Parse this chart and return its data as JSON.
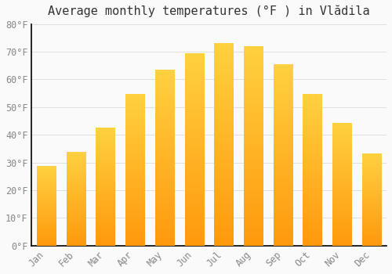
{
  "title": "Average monthly temperatures (°F ) in Vlădila",
  "months": [
    "Jan",
    "Feb",
    "Mar",
    "Apr",
    "May",
    "Jun",
    "Jul",
    "Aug",
    "Sep",
    "Oct",
    "Nov",
    "Dec"
  ],
  "values": [
    28.8,
    33.8,
    42.6,
    54.5,
    63.5,
    69.3,
    72.9,
    71.8,
    65.5,
    54.5,
    44.1,
    33.3
  ],
  "bar_color_top": "#FFB833",
  "bar_color_bottom": "#FF8C00",
  "background_color": "#FAFAFA",
  "grid_color": "#E0E0E0",
  "title_fontsize": 11,
  "tick_fontsize": 8.5,
  "tick_color": "#888888",
  "title_color": "#333333",
  "ylim": [
    0,
    80
  ],
  "yticks": [
    0,
    10,
    20,
    30,
    40,
    50,
    60,
    70,
    80
  ],
  "bar_width": 0.65,
  "spine_color": "#000000"
}
